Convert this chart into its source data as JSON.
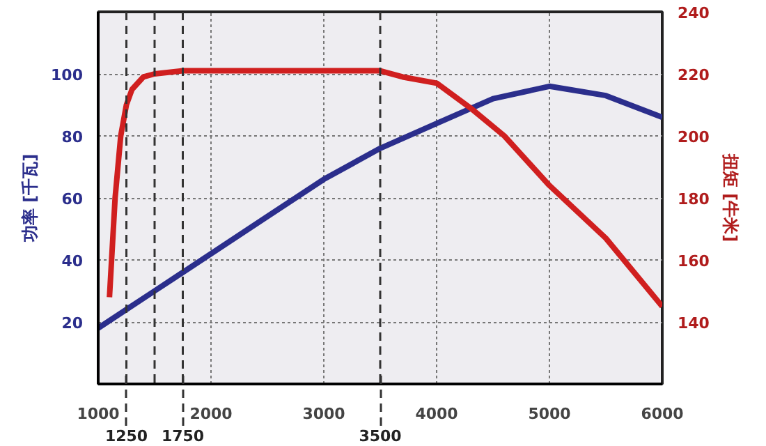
{
  "chart_data": {
    "type": "line",
    "ylabel": "功率 [千瓦]",
    "y2label": "扭矩 [牛米]",
    "xlim": [
      1000,
      6000
    ],
    "xticks": [
      1000,
      2000,
      3000,
      4000,
      5000,
      6000
    ],
    "ylim": [
      0,
      120
    ],
    "yticks": [
      20,
      40,
      60,
      80,
      100
    ],
    "y2lim": [
      120,
      240
    ],
    "y2ticks": [
      140,
      160,
      180,
      200,
      220,
      240
    ],
    "grid": true,
    "line_style": "solid",
    "marker": "none",
    "series": [
      {
        "color": "#2b2e8c",
        "x": [
          1000,
          1250,
          1500,
          1750,
          2000,
          2500,
          3000,
          3500,
          4000,
          4500,
          5000,
          5500,
          6000
        ],
        "values": [
          18,
          24,
          30,
          36,
          42,
          54,
          66,
          76,
          84,
          92,
          96,
          93,
          86
        ]
      },
      {
        "color": "#d01f1f",
        "axis": "y2",
        "x": [
          1100,
          1150,
          1200,
          1250,
          1300,
          1400,
          1500,
          1750,
          2500,
          3500,
          3700,
          4000,
          4300,
          4600,
          5000,
          5500,
          6000
        ],
        "values": [
          148,
          180,
          200,
          210,
          215,
          219,
          220,
          221,
          221,
          221,
          219,
          217,
          209,
          200,
          184,
          167,
          145
        ]
      }
    ],
    "ref_lines": [
      {
        "axis": "x",
        "value": 1250,
        "label": "1250",
        "line_style": "dashed",
        "color": "#333333"
      },
      {
        "axis": "x",
        "value": 1500,
        "label": null,
        "line_style": "dashed",
        "color": "#333333"
      },
      {
        "axis": "x",
        "value": 1750,
        "label": "1750",
        "line_style": "dashed",
        "color": "#333333"
      },
      {
        "axis": "x",
        "value": 3500,
        "label": "3500",
        "line_style": "dashed",
        "color": "#333333"
      }
    ]
  }
}
